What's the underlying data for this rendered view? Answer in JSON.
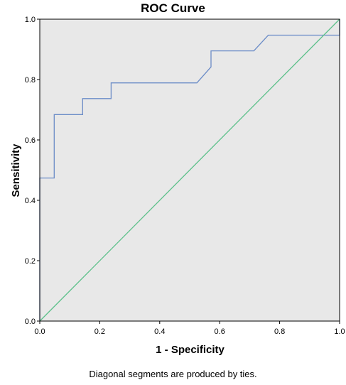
{
  "chart_data": {
    "type": "line",
    "title": "ROC Curve",
    "xlabel": "1 - Specificity",
    "ylabel": "Sensitivity",
    "footnote": "Diagonal segments are produced by ties.",
    "xlim": [
      0,
      1
    ],
    "ylim": [
      0,
      1
    ],
    "x_ticks": [
      "0.0",
      "0.2",
      "0.4",
      "0.6",
      "0.8",
      "1.0"
    ],
    "y_ticks": [
      "0.0",
      "0.2",
      "0.4",
      "0.6",
      "0.8",
      "1.0"
    ],
    "grid": false,
    "background": "#e8e8e8",
    "series": [
      {
        "color": "#6b8cc7",
        "x": [
          0,
          0,
          0.048,
          0.048,
          0.143,
          0.143,
          0.238,
          0.238,
          0.524,
          0.571,
          0.571,
          0.714,
          0.762,
          1.0,
          1.0
        ],
        "y": [
          0,
          0.474,
          0.474,
          0.684,
          0.684,
          0.737,
          0.737,
          0.789,
          0.789,
          0.842,
          0.895,
          0.895,
          0.947,
          0.947,
          1.0
        ]
      },
      {
        "color": "#5cc08a",
        "x": [
          0,
          1
        ],
        "y": [
          0,
          1
        ]
      }
    ]
  }
}
